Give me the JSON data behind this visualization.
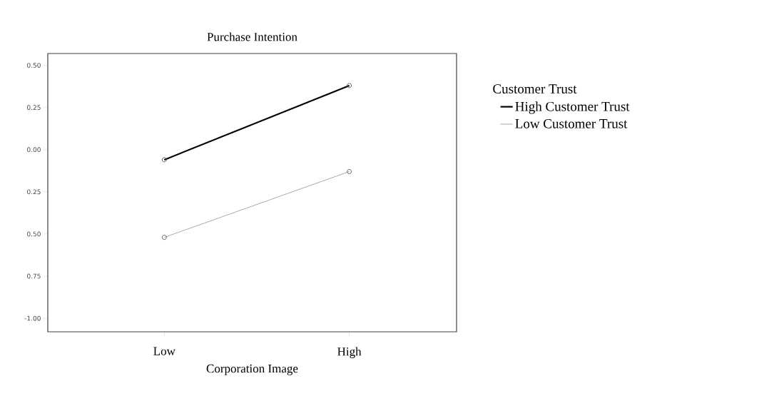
{
  "chart_data": {
    "type": "line",
    "title": "Purchase Intention",
    "xlabel": "Corporation Image",
    "legend_title": "Customer Trust",
    "categories": [
      "Low",
      "High"
    ],
    "series": [
      {
        "name": "High Customer Trust",
        "color": "#000000",
        "values": [
          -0.06,
          0.38
        ]
      },
      {
        "name": "Low Customer Trust",
        "color": "#9aa0a8",
        "values": [
          -0.52,
          -0.13
        ]
      }
    ],
    "ylim": [
      -1.08,
      0.57
    ],
    "yticks": [
      {
        "value": 0.5,
        "label": "0.50"
      },
      0.25,
      {
        "value": 0.0,
        "label": "0.00"
      },
      {
        "value": -0.25,
        "label": "0.25"
      },
      {
        "value": -0.5,
        "label": "0.50"
      },
      {
        "value": -0.75,
        "label": "0.75"
      },
      {
        "value": -1.0,
        "label": "-1.00"
      }
    ],
    "marker": "circle",
    "line_style": "solid",
    "legend": "right",
    "grid": false
  }
}
